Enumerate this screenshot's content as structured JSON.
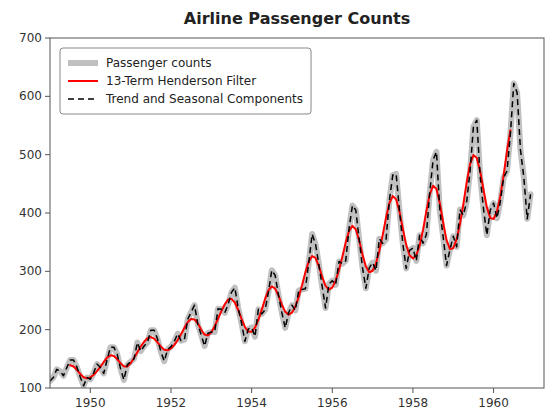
{
  "chart_data": {
    "type": "line",
    "title": "Airline Passenger Counts",
    "x": [
      1949,
      1949.0833333333,
      1949.1666666667,
      1949.25,
      1949.3333333333,
      1949.4166666667,
      1949.5,
      1949.5833333333,
      1949.6666666667,
      1949.75,
      1949.8333333333,
      1949.9166666667,
      1950,
      1950.0833333333,
      1950.1666666667,
      1950.25,
      1950.3333333333,
      1950.4166666667,
      1950.5,
      1950.5833333333,
      1950.6666666667,
      1950.75,
      1950.8333333333,
      1950.9166666667,
      1951,
      1951.0833333333,
      1951.1666666667,
      1951.25,
      1951.3333333333,
      1951.4166666667,
      1951.5,
      1951.5833333333,
      1951.6666666667,
      1951.75,
      1951.8333333333,
      1951.9166666667,
      1952,
      1952.0833333333,
      1952.1666666667,
      1952.25,
      1952.3333333333,
      1952.4166666667,
      1952.5,
      1952.5833333333,
      1952.6666666667,
      1952.75,
      1952.8333333333,
      1952.9166666667,
      1953,
      1953.0833333333,
      1953.1666666667,
      1953.25,
      1953.3333333333,
      1953.4166666667,
      1953.5,
      1953.5833333333,
      1953.6666666667,
      1953.75,
      1953.8333333333,
      1953.9166666667,
      1954,
      1954.0833333333,
      1954.1666666667,
      1954.25,
      1954.3333333333,
      1954.4166666667,
      1954.5,
      1954.5833333333,
      1954.6666666667,
      1954.75,
      1954.8333333333,
      1954.9166666667,
      1955,
      1955.0833333333,
      1955.1666666667,
      1955.25,
      1955.3333333333,
      1955.4166666667,
      1955.5,
      1955.5833333333,
      1955.6666666667,
      1955.75,
      1955.8333333333,
      1955.9166666667,
      1956,
      1956.0833333333,
      1956.1666666667,
      1956.25,
      1956.3333333333,
      1956.4166666667,
      1956.5,
      1956.5833333333,
      1956.6666666667,
      1956.75,
      1956.8333333333,
      1956.9166666667,
      1957,
      1957.0833333333,
      1957.1666666667,
      1957.25,
      1957.3333333333,
      1957.4166666667,
      1957.5,
      1957.5833333333,
      1957.6666666667,
      1957.75,
      1957.8333333333,
      1957.9166666667,
      1958,
      1958.0833333333,
      1958.1666666667,
      1958.25,
      1958.3333333333,
      1958.4166666667,
      1958.5,
      1958.5833333333,
      1958.6666666667,
      1958.75,
      1958.8333333333,
      1958.9166666667,
      1959,
      1959.0833333333,
      1959.1666666667,
      1959.25,
      1959.3333333333,
      1959.4166666667,
      1959.5,
      1959.5833333333,
      1959.6666666667,
      1959.75,
      1959.8333333333,
      1959.9166666667,
      1960,
      1960.0833333333,
      1960.1666666667,
      1960.25,
      1960.3333333333,
      1960.4166666667,
      1960.5,
      1960.5833333333,
      1960.6666666667,
      1960.75,
      1960.8333333333,
      1960.9166666667
    ],
    "series": [
      {
        "name": "Passenger counts",
        "color": "#c0c0c0",
        "line_style": "solid",
        "values": [
          112,
          118,
          132,
          129,
          121,
          135,
          148,
          148,
          136,
          119,
          104,
          118,
          115,
          126,
          141,
          135,
          125,
          149,
          170,
          170,
          158,
          133,
          114,
          140,
          145,
          150,
          178,
          163,
          172,
          178,
          199,
          199,
          184,
          162,
          146,
          166,
          171,
          180,
          193,
          181,
          183,
          218,
          230,
          242,
          209,
          191,
          172,
          194,
          196,
          196,
          236,
          235,
          229,
          243,
          264,
          272,
          237,
          211,
          180,
          201,
          204,
          188,
          235,
          227,
          234,
          264,
          302,
          293,
          259,
          229,
          203,
          229,
          242,
          233,
          267,
          269,
          270,
          315,
          364,
          347,
          312,
          274,
          237,
          278,
          284,
          277,
          317,
          313,
          318,
          374,
          413,
          405,
          355,
          306,
          271,
          306,
          315,
          301,
          356,
          348,
          355,
          422,
          465,
          467,
          404,
          347,
          305,
          336,
          340,
          318,
          362,
          348,
          363,
          435,
          491,
          505,
          404,
          359,
          310,
          337,
          360,
          342,
          406,
          396,
          420,
          472,
          548,
          559,
          463,
          407,
          362,
          405,
          417,
          391,
          419,
          461,
          472,
          535,
          622,
          606,
          508,
          461,
          390,
          432
        ]
      },
      {
        "name": "13-Term Henderson Filter",
        "color": "#ff0000",
        "line_style": "solid",
        "values": [
          null,
          null,
          null,
          null,
          null,
          null,
          139.308,
          136.932,
          131.193,
          124.028,
          118.425,
          116.443,
          118.237,
          122.719,
          128.918,
          136.435,
          144.859,
          152.145,
          155.967,
          154.968,
          149.543,
          142.342,
          137.064,
          137.014,
          142.565,
          151.532,
          161.495,
          170.991,
          179.311,
          185.258,
          187.368,
          184.648,
          178.18,
          170.819,
          165.634,
          164.614,
          167.728,
          173.848,
          182.177,
          192.229,
          203.301,
          212.971,
          218.371,
          217.543,
          210.401,
          199.946,
          191.601,
          189.96,
          195.626,
          206.007,
          218.753,
          231.713,
          243.612,
          251.536,
          252.792,
          246.61,
          234.021,
          218.527,
          204.598,
          196.644,
          196.357,
          203.479,
          216.75,
          234.034,
          252.602,
          267.542,
          274.095,
          270.332,
          258.223,
          243.014,
          230.595,
          225.803,
          229.228,
          239.666,
          255.699,
          276.053,
          298.369,
          316.997,
          326.118,
          322.871,
          308.875,
          290.395,
          275.048,
          268.538,
          272.159,
          284.013,
          302.181,
          325.113,
          349.656,
          369.456,
          377.906,
          371.708,
          352.803,
          328.538,
          308.091,
          298.371,
          300.993,
          313.76,
          334.799,
          362.128,
          392.127,
          417.167,
          429.008,
          423.4,
          402.084,
          372.877,
          345.338,
          327.514,
          322.055,
          327.656,
          344.423,
          370.941,
          403.246,
          432.116,
          446.771,
          441.11,
          416.643,
          383.228,
          353.409,
          338.026,
          339.691,
          355.063,
          381.249,
          415.192,
          452.656,
          483.857,
          499.274,
          494.368,
          471.785,
          439.853,
          409.636,
          391.731,
          389.657,
          402.575,
          428.798,
          465.158,
          506.717,
          542.048,
          null,
          null,
          null,
          null,
          null,
          null
        ]
      },
      {
        "name": "Trend and Seasonal Components",
        "color": "#000000",
        "line_style": "dashed",
        "values": [
          112,
          118,
          132,
          129,
          121,
          135,
          148,
          148,
          136,
          119,
          104,
          118,
          115,
          126,
          141,
          135,
          125,
          149,
          170,
          170,
          158,
          133,
          114,
          140,
          145,
          150,
          178,
          163,
          172,
          178,
          199,
          199,
          184,
          162,
          146,
          166,
          171,
          180,
          193,
          181,
          183,
          218,
          230,
          242,
          209,
          191,
          172,
          194,
          196,
          196,
          236,
          235,
          229,
          243,
          264,
          272,
          237,
          211,
          180,
          201,
          204,
          188,
          235,
          227,
          234,
          264,
          302,
          293,
          259,
          229,
          203,
          229,
          242,
          233,
          267,
          269,
          270,
          315,
          364,
          347,
          312,
          274,
          237,
          278,
          284,
          277,
          317,
          313,
          318,
          374,
          413,
          405,
          355,
          306,
          271,
          306,
          315,
          301,
          356,
          348,
          355,
          422,
          465,
          467,
          404,
          347,
          305,
          336,
          340,
          318,
          362,
          348,
          363,
          435,
          491,
          505,
          404,
          359,
          310,
          337,
          360,
          342,
          406,
          396,
          420,
          472,
          548,
          559,
          463,
          407,
          362,
          405,
          417,
          391,
          419,
          461,
          472,
          535,
          622,
          606,
          508,
          461,
          390,
          432
        ]
      }
    ],
    "xlim": [
      1949.0,
      1961.25
    ],
    "ylim": [
      100,
      700
    ],
    "xticks": [
      1950,
      1952,
      1954,
      1956,
      1958,
      1960
    ],
    "yticks": [
      100,
      200,
      300,
      400,
      500,
      600,
      700
    ],
    "grid": false,
    "legend": "upper left"
  }
}
